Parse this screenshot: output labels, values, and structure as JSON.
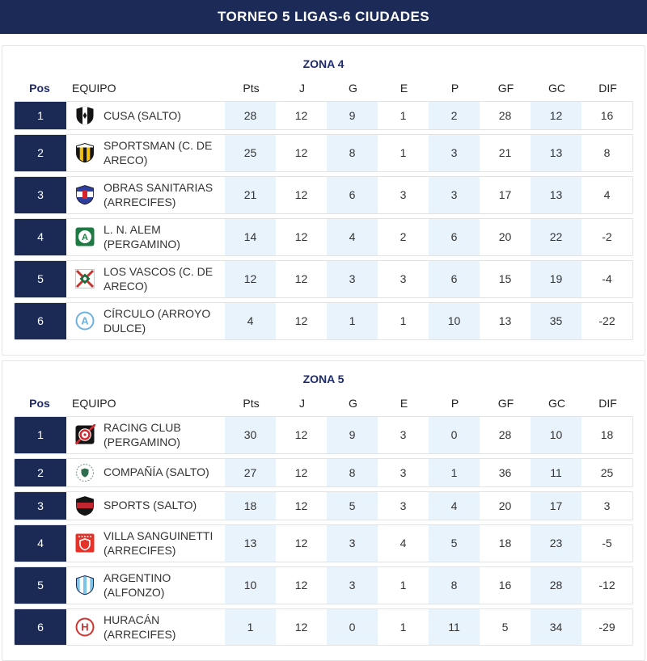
{
  "header": {
    "title": "TORNEO 5 LIGAS-6 CIUDADES"
  },
  "columns": {
    "pos": "Pos",
    "team": "EQUIPO",
    "stats": [
      "Pts",
      "J",
      "G",
      "E",
      "P",
      "GF",
      "GC",
      "DIF"
    ]
  },
  "colors": {
    "topbar_navy": "#1b2a57",
    "position_cell_navy": "#1b2a55",
    "zone_title_navy": "#1e2a6e",
    "column_highlight_blue": "#e9f3fb",
    "row_border": "#e2e2e2"
  },
  "zones": [
    {
      "title": "ZONA 4",
      "rows": [
        {
          "pos": 1,
          "team": "CUSA (SALTO)",
          "stats": [
            28,
            12,
            9,
            1,
            2,
            28,
            12,
            16
          ],
          "logo": {
            "name": "cusa-crest-icon",
            "kind": "shield-vstripe",
            "c1": "#141414",
            "c2": "#ffffff"
          }
        },
        {
          "pos": 2,
          "team": "SPORTSMAN (C. DE ARECO)",
          "stats": [
            25,
            12,
            8,
            1,
            3,
            21,
            13,
            8
          ],
          "logo": {
            "name": "sportsman-crest-icon",
            "kind": "shield-stripes",
            "c1": "#f2c10f",
            "c2": "#161616",
            "c3": "#ffffff",
            "border": "#161616"
          }
        },
        {
          "pos": 3,
          "team": "OBRAS SANITARIAS (ARRECIFES)",
          "stats": [
            21,
            12,
            6,
            3,
            3,
            17,
            13,
            4
          ],
          "logo": {
            "name": "obras-sanitarias-crest-icon",
            "kind": "shield-band",
            "c1": "#2e3e9c",
            "c2": "#ffffff",
            "c3": "#d8232a"
          }
        },
        {
          "pos": 4,
          "team": "L. N. ALEM (PERGAMINO)",
          "stats": [
            14,
            12,
            4,
            2,
            6,
            20,
            22,
            -2
          ],
          "logo": {
            "name": "ln-alem-crest-icon",
            "kind": "square-circle",
            "c1": "#1e7a43",
            "c2": "#ffffff",
            "letter": "A"
          }
        },
        {
          "pos": 5,
          "team": "LOS VASCOS (C. DE ARECO)",
          "stats": [
            12,
            12,
            3,
            3,
            6,
            15,
            19,
            -4
          ],
          "logo": {
            "name": "los-vascos-crest-icon",
            "kind": "square-cross",
            "c2": "#c4342e",
            "c3": "#1c6b3c"
          }
        },
        {
          "pos": 6,
          "team": "CÍRCULO (ARROYO DULCE)",
          "stats": [
            4,
            12,
            1,
            1,
            10,
            13,
            35,
            -22
          ],
          "logo": {
            "name": "circulo-crest-icon",
            "kind": "circle-letter",
            "c1": "#6db1e0",
            "letter": "A"
          }
        }
      ]
    },
    {
      "title": "ZONA 5",
      "rows": [
        {
          "pos": 1,
          "team": "RACING CLUB (PERGAMINO)",
          "stats": [
            30,
            12,
            9,
            3,
            0,
            28,
            10,
            18
          ],
          "logo": {
            "name": "racing-club-crest-icon",
            "kind": "square-target",
            "c1": "#141414",
            "c2": "#d8232a"
          }
        },
        {
          "pos": 2,
          "team": "COMPAÑÍA (SALTO)",
          "stats": [
            27,
            12,
            8,
            3,
            1,
            36,
            11,
            25
          ],
          "logo": {
            "name": "compania-crest-icon",
            "kind": "circle-shield",
            "c1": "#8aa294",
            "c2": "#2f6e4f"
          }
        },
        {
          "pos": 3,
          "team": "SPORTS (SALTO)",
          "stats": [
            18,
            12,
            5,
            3,
            4,
            20,
            17,
            3
          ],
          "logo": {
            "name": "sports-crest-icon",
            "kind": "shield-band",
            "c1": "#161616",
            "c2": "#c22630"
          }
        },
        {
          "pos": 4,
          "team": "VILLA SANGUINETTI (ARRECIFES)",
          "stats": [
            13,
            12,
            3,
            4,
            5,
            18,
            23,
            -5
          ],
          "logo": {
            "name": "villa-sanguinetti-crest-icon",
            "kind": "square-shield",
            "c1": "#e63329",
            "c2": "#ffffff"
          }
        },
        {
          "pos": 5,
          "team": "ARGENTINO (ALFONZO)",
          "stats": [
            10,
            12,
            3,
            1,
            8,
            16,
            28,
            -12
          ],
          "logo": {
            "name": "argentino-crest-icon",
            "kind": "shield-stripes",
            "c1": "#ffffff",
            "c2": "#7cc4e8",
            "border": "#1b2a55"
          }
        },
        {
          "pos": 6,
          "team": "HURACÁN (ARRECIFES)",
          "stats": [
            1,
            12,
            0,
            1,
            11,
            5,
            34,
            -29
          ],
          "logo": {
            "name": "huracan-crest-icon",
            "kind": "circle-letter",
            "c1": "#d2322e",
            "letter": "H"
          }
        }
      ]
    }
  ]
}
